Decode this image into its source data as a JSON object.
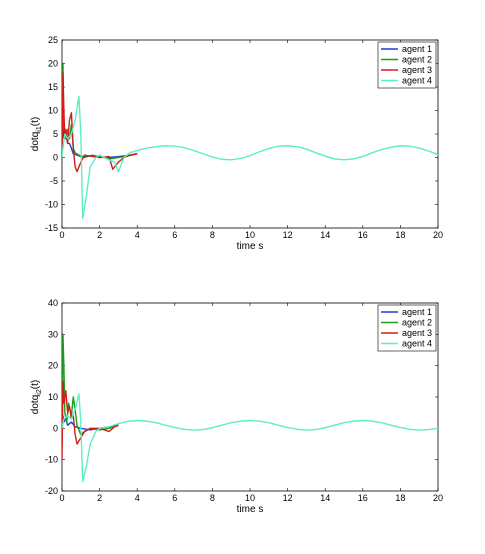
{
  "chart_data": [
    {
      "type": "line",
      "xlabel": "time s",
      "ylabel": "dotq",
      "ylabel_sub": "i1",
      "ylabel_suffix": "(t)",
      "xlim": [
        0,
        20
      ],
      "ylim": [
        -15,
        25
      ],
      "xticks": [
        0,
        2,
        4,
        6,
        8,
        10,
        12,
        14,
        16,
        18,
        20
      ],
      "yticks": [
        -15,
        -10,
        -5,
        0,
        5,
        10,
        15,
        20,
        25
      ],
      "grid": false,
      "legend_position": "top-right",
      "series": [
        {
          "name": "agent 1",
          "color": "#1a3fd6",
          "points": [
            [
              0,
              2
            ],
            [
              0.05,
              8
            ],
            [
              0.1,
              4
            ],
            [
              0.2,
              5
            ],
            [
              0.3,
              3
            ],
            [
              0.4,
              3
            ],
            [
              0.5,
              2
            ],
            [
              0.6,
              0.8
            ],
            [
              0.8,
              0.5
            ],
            [
              1.0,
              0.2
            ],
            [
              1.5,
              0.3
            ],
            [
              2,
              0.1
            ],
            [
              2.5,
              0
            ],
            [
              3,
              0.2
            ],
            [
              3.5,
              0.4
            ],
            [
              4,
              0.8
            ]
          ]
        },
        {
          "name": "agent 2",
          "color": "#1e9a1e",
          "points": [
            [
              0,
              3
            ],
            [
              0.05,
              20
            ],
            [
              0.1,
              6
            ],
            [
              0.2,
              4
            ],
            [
              0.3,
              6
            ],
            [
              0.4,
              4
            ],
            [
              0.5,
              7
            ],
            [
              0.6,
              2
            ],
            [
              0.7,
              1
            ],
            [
              0.9,
              0.5
            ],
            [
              1.2,
              0
            ],
            [
              1.6,
              0.5
            ],
            [
              2,
              0.2
            ],
            [
              2.5,
              -0.3
            ],
            [
              3,
              0
            ],
            [
              3.5,
              0.3
            ],
            [
              4,
              0.8
            ]
          ]
        },
        {
          "name": "agent 3",
          "color": "#d41a1a",
          "points": [
            [
              0,
              1
            ],
            [
              0.05,
              18
            ],
            [
              0.1,
              10
            ],
            [
              0.15,
              4
            ],
            [
              0.2,
              6
            ],
            [
              0.3,
              3
            ],
            [
              0.4,
              8
            ],
            [
              0.5,
              9.5
            ],
            [
              0.6,
              2
            ],
            [
              0.7,
              -2
            ],
            [
              0.8,
              -3
            ],
            [
              1.0,
              -1
            ],
            [
              1.2,
              0.5
            ],
            [
              1.5,
              0.3
            ],
            [
              2,
              0
            ],
            [
              2.5,
              0.2
            ],
            [
              2.7,
              -2.5
            ],
            [
              3,
              -1
            ],
            [
              3.3,
              0
            ],
            [
              3.6,
              0.5
            ],
            [
              4,
              0.8
            ]
          ]
        },
        {
          "name": "agent 4",
          "color": "#5cf0c0",
          "points": [
            [
              0,
              0
            ],
            [
              0.05,
              2
            ],
            [
              0.15,
              5
            ],
            [
              0.3,
              4
            ],
            [
              0.5,
              5
            ],
            [
              0.7,
              8
            ],
            [
              0.9,
              13
            ],
            [
              1.0,
              5
            ],
            [
              1.1,
              -13
            ],
            [
              1.3,
              -8
            ],
            [
              1.5,
              -2
            ],
            [
              1.8,
              0
            ],
            [
              2,
              0.5
            ],
            [
              2.5,
              -0.5
            ],
            [
              2.8,
              -1
            ],
            [
              3.0,
              -3
            ],
            [
              3.3,
              0
            ],
            [
              3.6,
              1
            ],
            [
              4,
              1.5
            ],
            [
              4.5,
              2
            ],
            [
              5,
              2.3
            ],
            [
              5.5,
              2.5
            ],
            [
              6,
              2.4
            ],
            [
              6.5,
              2.1
            ],
            [
              7,
              1.5
            ],
            [
              7.5,
              0.8
            ],
            [
              8,
              0.1
            ],
            [
              8.5,
              -0.4
            ],
            [
              9,
              -0.5
            ],
            [
              9.5,
              -0.2
            ],
            [
              10,
              0.4
            ],
            [
              10.5,
              1.2
            ],
            [
              11,
              1.9
            ],
            [
              11.5,
              2.4
            ],
            [
              12,
              2.5
            ],
            [
              12.5,
              2.3
            ],
            [
              13,
              1.8
            ],
            [
              13.5,
              1.0
            ],
            [
              14,
              0.3
            ],
            [
              14.5,
              -0.3
            ],
            [
              15,
              -0.5
            ],
            [
              15.5,
              -0.3
            ],
            [
              16,
              0.2
            ],
            [
              16.5,
              1.0
            ],
            [
              17,
              1.7
            ],
            [
              17.5,
              2.2
            ],
            [
              18,
              2.5
            ],
            [
              18.5,
              2.4
            ],
            [
              19,
              2.0
            ],
            [
              19.5,
              1.4
            ],
            [
              20,
              0.6
            ]
          ]
        }
      ]
    },
    {
      "type": "line",
      "xlabel": "time s",
      "ylabel": "dotq",
      "ylabel_sub": "i2",
      "ylabel_suffix": "(t)",
      "xlim": [
        0,
        20
      ],
      "ylim": [
        -20,
        40
      ],
      "xticks": [
        0,
        2,
        4,
        6,
        8,
        10,
        12,
        14,
        16,
        18,
        20
      ],
      "yticks": [
        -20,
        -10,
        0,
        10,
        20,
        30,
        40
      ],
      "grid": false,
      "legend_position": "top-right",
      "series": [
        {
          "name": "agent 1",
          "color": "#1a3fd6",
          "points": [
            [
              0,
              0
            ],
            [
              0.05,
              4
            ],
            [
              0.1,
              2
            ],
            [
              0.2,
              3
            ],
            [
              0.3,
              1
            ],
            [
              0.5,
              2
            ],
            [
              0.7,
              0.5
            ],
            [
              1,
              0
            ],
            [
              1.5,
              -0.5
            ],
            [
              2,
              0
            ],
            [
              2.5,
              0.5
            ],
            [
              3,
              1
            ]
          ]
        },
        {
          "name": "agent 2",
          "color": "#1e9a1e",
          "points": [
            [
              0,
              -5
            ],
            [
              0.05,
              30
            ],
            [
              0.1,
              20
            ],
            [
              0.15,
              5
            ],
            [
              0.25,
              2
            ],
            [
              0.35,
              8
            ],
            [
              0.5,
              4
            ],
            [
              0.6,
              10
            ],
            [
              0.7,
              6
            ],
            [
              0.8,
              1
            ],
            [
              1.0,
              -2
            ],
            [
              1.2,
              -1
            ],
            [
              1.5,
              0
            ],
            [
              2,
              -0.5
            ],
            [
              2.5,
              0
            ],
            [
              3,
              1
            ]
          ]
        },
        {
          "name": "agent 3",
          "color": "#d41a1a",
          "points": [
            [
              0,
              -10
            ],
            [
              0.05,
              15
            ],
            [
              0.1,
              8
            ],
            [
              0.2,
              12
            ],
            [
              0.3,
              5
            ],
            [
              0.4,
              7
            ],
            [
              0.5,
              3
            ],
            [
              0.6,
              4
            ],
            [
              0.7,
              -2
            ],
            [
              0.8,
              -5
            ],
            [
              1.0,
              -3
            ],
            [
              1.2,
              -1
            ],
            [
              1.5,
              0
            ],
            [
              2,
              0
            ],
            [
              2.5,
              -1
            ],
            [
              2.8,
              0.5
            ],
            [
              3,
              1
            ]
          ]
        },
        {
          "name": "agent 4",
          "color": "#5cf0c0",
          "points": [
            [
              0,
              0
            ],
            [
              0.1,
              3
            ],
            [
              0.3,
              4
            ],
            [
              0.5,
              3
            ],
            [
              0.7,
              6
            ],
            [
              0.9,
              11
            ],
            [
              1.0,
              2
            ],
            [
              1.1,
              -17
            ],
            [
              1.3,
              -12
            ],
            [
              1.5,
              -5
            ],
            [
              1.8,
              -1
            ],
            [
              2,
              0
            ],
            [
              2.5,
              0.5
            ],
            [
              3,
              1.5
            ],
            [
              3.5,
              2.2
            ],
            [
              4,
              2.5
            ],
            [
              4.5,
              2.3
            ],
            [
              5,
              1.8
            ],
            [
              5.5,
              1.0
            ],
            [
              6,
              0.3
            ],
            [
              6.5,
              -0.3
            ],
            [
              7,
              -0.6
            ],
            [
              7.5,
              -0.4
            ],
            [
              8,
              0.2
            ],
            [
              8.5,
              1.0
            ],
            [
              9,
              1.8
            ],
            [
              9.5,
              2.3
            ],
            [
              10,
              2.5
            ],
            [
              10.5,
              2.3
            ],
            [
              11,
              1.8
            ],
            [
              11.5,
              1.0
            ],
            [
              12,
              0.3
            ],
            [
              12.5,
              -0.3
            ],
            [
              13,
              -0.6
            ],
            [
              13.5,
              -0.4
            ],
            [
              14,
              0.2
            ],
            [
              14.5,
              1.0
            ],
            [
              15,
              1.8
            ],
            [
              15.5,
              2.3
            ],
            [
              16,
              2.5
            ],
            [
              16.5,
              2.3
            ],
            [
              17,
              1.8
            ],
            [
              17.5,
              1.0
            ],
            [
              18,
              0.3
            ],
            [
              18.5,
              -0.3
            ],
            [
              19,
              -0.6
            ],
            [
              19.5,
              -0.4
            ],
            [
              20,
              0
            ]
          ]
        }
      ]
    }
  ]
}
